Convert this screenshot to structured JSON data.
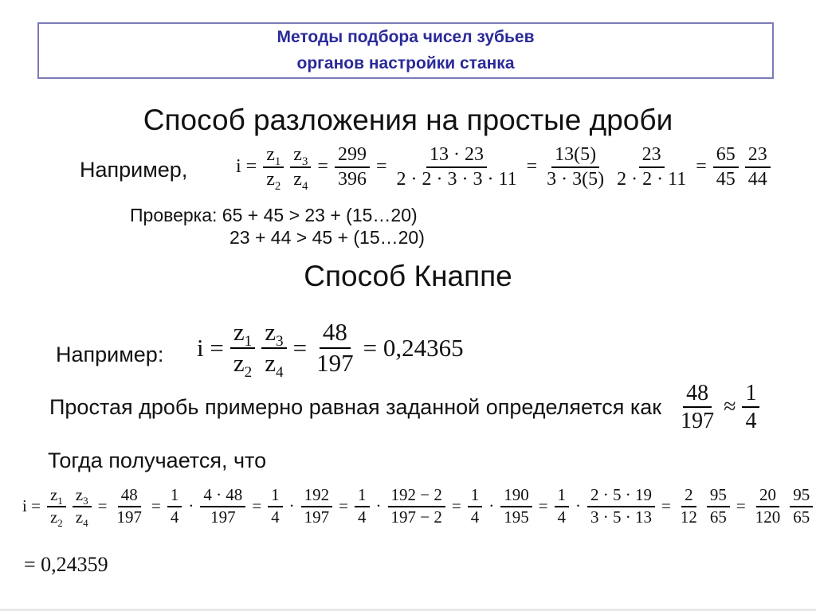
{
  "slide": {
    "colors": {
      "title": "#2a2a99",
      "box_border": "#7b7bb8"
    },
    "title_lines": [
      "Методы подбора чисел зубьев",
      "органов настройки станка"
    ],
    "section1": {
      "heading": "Способ разложения на простые дроби",
      "example_label": "Например,",
      "formula": [
        {
          "t": "i ="
        },
        {
          "f": [
            "z_1",
            "z_2"
          ]
        },
        {
          "f": [
            "z_3",
            "z_4"
          ]
        },
        {
          "t": "="
        },
        {
          "f": [
            "299",
            "396"
          ]
        },
        {
          "t": "="
        },
        {
          "f": [
            "13 · 23",
            "2 · 2 · 3 · 3 · 11"
          ]
        },
        {
          "t": "="
        },
        {
          "f": [
            "13(5)",
            "3 · 3(5)"
          ]
        },
        {
          "f": [
            "23",
            "2 · 2 · 11"
          ]
        },
        {
          "t": "="
        },
        {
          "f": [
            "65",
            "45"
          ]
        },
        {
          "f": [
            "23",
            "44"
          ]
        }
      ],
      "check_line1": "Проверка: 65 + 45 > 23 + (15…20)",
      "check_line2": "23 + 44 > 45 + (15…20)"
    },
    "section2": {
      "heading": "Способ Кнаппе",
      "example_label": "Например:",
      "formula": [
        {
          "t": "i ="
        },
        {
          "f": [
            "z_1",
            "z_2"
          ]
        },
        {
          "f": [
            "z_3",
            "z_4"
          ]
        },
        {
          "t": "="
        },
        {
          "f": [
            "48",
            "197"
          ]
        },
        {
          "t": "= 0,24365"
        }
      ],
      "approx_text": "Простая дробь примерно равная заданной определяется как",
      "approx_formula": [
        {
          "f": [
            "48",
            "197"
          ]
        },
        {
          "t": "≈"
        },
        {
          "f": [
            "1",
            "4"
          ]
        }
      ],
      "then_text": "Тогда получается, что",
      "long_formula": [
        {
          "t": "i ="
        },
        {
          "f": [
            "z_1",
            "z_2"
          ]
        },
        {
          "f": [
            "z_3",
            "z_4"
          ]
        },
        {
          "t": "="
        },
        {
          "f": [
            "48",
            "197"
          ]
        },
        {
          "t": "="
        },
        {
          "f": [
            "1",
            "4"
          ]
        },
        {
          "t": "·"
        },
        {
          "f": [
            "4 · 48",
            "197"
          ]
        },
        {
          "t": "="
        },
        {
          "f": [
            "1",
            "4"
          ]
        },
        {
          "t": "·"
        },
        {
          "f": [
            "192",
            "197"
          ]
        },
        {
          "t": "="
        },
        {
          "f": [
            "1",
            "4"
          ]
        },
        {
          "t": "·"
        },
        {
          "f": [
            "192 − 2",
            "197 − 2"
          ]
        },
        {
          "t": "="
        },
        {
          "f": [
            "1",
            "4"
          ]
        },
        {
          "t": "·"
        },
        {
          "f": [
            "190",
            "195"
          ]
        },
        {
          "t": "="
        },
        {
          "f": [
            "1",
            "4"
          ]
        },
        {
          "t": "·"
        },
        {
          "f": [
            "2 · 5 · 19",
            "3 · 5 · 13"
          ]
        },
        {
          "t": "="
        },
        {
          "f": [
            "2",
            "12"
          ]
        },
        {
          "f": [
            "95",
            "65"
          ]
        },
        {
          "t": "="
        },
        {
          "f": [
            "20",
            "120"
          ]
        },
        {
          "f": [
            "95",
            "65"
          ]
        },
        {
          "t": "="
        }
      ],
      "result_line": "= 0,24359"
    }
  }
}
